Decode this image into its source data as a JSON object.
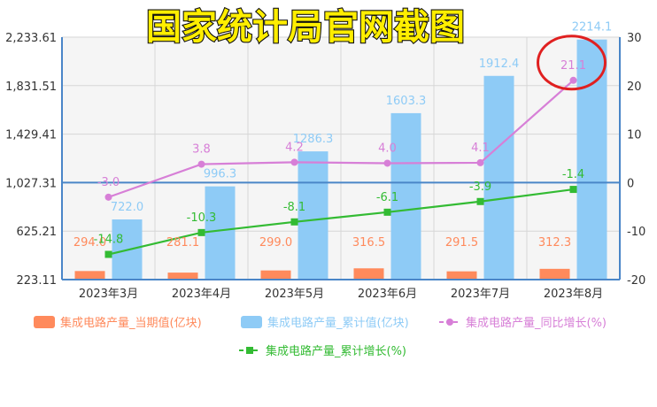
{
  "banner": {
    "text": "国家统计局官网截图"
  },
  "chart_data": {
    "type": "bar+line",
    "categories": [
      "2023年3月",
      "2023年4月",
      "2023年5月",
      "2023年6月",
      "2023年7月",
      "2023年8月"
    ],
    "y_left": {
      "min": 223.11,
      "max": 2233.61,
      "ticks": [
        "2,233.61",
        "1,831.51",
        "1,429.41",
        "1,027.31",
        "625.21",
        "223.11"
      ]
    },
    "y_right": {
      "min": -20,
      "max": 30,
      "ticks": [
        "30",
        "20",
        "10",
        "0",
        "-10",
        "-20"
      ]
    },
    "series": [
      {
        "name": "集成电路产量_当期值(亿块)",
        "kind": "bar",
        "axis": "left",
        "color": "#ff8a5c",
        "values": [
          294.0,
          281.1,
          299.0,
          316.5,
          291.5,
          312.3
        ],
        "labels": [
          "294.0",
          "281.1",
          "299.0",
          "316.5",
          "291.5",
          "312.3"
        ]
      },
      {
        "name": "集成电路产量_累计值(亿块)",
        "kind": "bar",
        "axis": "left",
        "color": "#8ecbf6",
        "values": [
          722.0,
          996.3,
          1286.3,
          1603.3,
          1912.4,
          2214.1
        ],
        "labels": [
          "722.0",
          "996.3",
          "1286.3",
          "1603.3",
          "1912.4",
          "2214.1"
        ]
      },
      {
        "name": "集成电路产量_同比增长(%)",
        "kind": "line",
        "axis": "right",
        "color": "#d77fd7",
        "values": [
          -3.0,
          3.8,
          4.2,
          4.0,
          4.1,
          21.1
        ],
        "labels": [
          "-3.0",
          "3.8",
          "4.2",
          "4.0",
          "4.1",
          "21.1"
        ]
      },
      {
        "name": "集成电路产量_累计增长(%)",
        "kind": "line",
        "axis": "right",
        "color": "#33bb33",
        "values": [
          -14.8,
          -10.3,
          -8.1,
          -6.1,
          -3.9,
          -1.4
        ],
        "labels": [
          "-14.8",
          "-10.3",
          "-8.1",
          "-6.1",
          "-3.9",
          "-1.4"
        ]
      }
    ],
    "highlight": {
      "category_index": 5,
      "series": "集成电路产量_同比增长(%)",
      "color": "#e02020"
    },
    "grid": true,
    "legend": "bottom"
  }
}
